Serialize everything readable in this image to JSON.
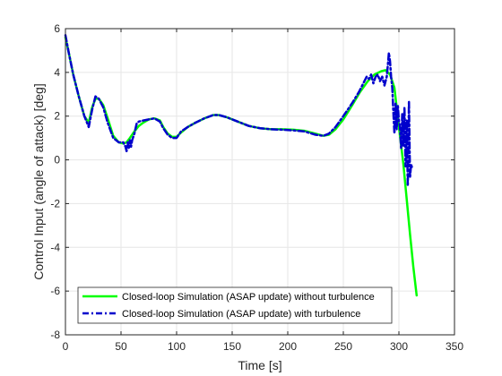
{
  "chart_data": {
    "type": "line",
    "title": "",
    "xlabel": "Time [s]",
    "ylabel": "Control Input (angle of attack) [deg]",
    "xlim": [
      0,
      350
    ],
    "ylim": [
      -8,
      6
    ],
    "xticks": [
      0,
      50,
      100,
      150,
      200,
      250,
      300,
      350
    ],
    "yticks": [
      -8,
      -6,
      -4,
      -2,
      0,
      2,
      4,
      6
    ],
    "grid": true,
    "legend_position": "bottom-left",
    "series": [
      {
        "name": "Closed-loop Simulation (ASAP update) without turbulence",
        "color": "#00ff00",
        "style": "solid",
        "x": [
          0,
          3,
          7,
          12,
          17,
          21,
          24,
          27,
          30,
          34,
          38,
          43,
          48,
          52,
          55,
          58,
          62,
          66,
          70,
          75,
          80,
          85,
          88,
          92,
          96,
          100,
          104,
          110,
          117,
          125,
          133,
          138,
          145,
          155,
          165,
          175,
          185,
          195,
          205,
          215,
          225,
          232,
          237,
          243,
          250,
          258,
          265,
          272,
          278,
          284,
          288,
          292,
          296,
          300,
          304,
          307,
          310,
          313,
          316
        ],
        "y": [
          5.6,
          4.9,
          3.9,
          2.9,
          2.0,
          1.7,
          2.4,
          2.8,
          2.8,
          2.5,
          1.9,
          1.1,
          0.8,
          0.75,
          0.8,
          1.0,
          1.3,
          1.55,
          1.7,
          1.85,
          1.9,
          1.8,
          1.5,
          1.2,
          1.05,
          1.05,
          1.25,
          1.5,
          1.7,
          1.9,
          2.05,
          2.05,
          1.95,
          1.75,
          1.55,
          1.45,
          1.4,
          1.4,
          1.38,
          1.33,
          1.2,
          1.1,
          1.15,
          1.4,
          1.85,
          2.5,
          3.1,
          3.6,
          3.9,
          4.05,
          4.1,
          3.9,
          3.3,
          1.5,
          -0.2,
          -1.8,
          -3.4,
          -4.9,
          -6.2
        ]
      },
      {
        "name": "Closed-loop Simulation (ASAP update) with turbulence",
        "color": "#0000cc",
        "style": "dashdot",
        "x": [
          0,
          3,
          7,
          12,
          17,
          21,
          24,
          27,
          30,
          34,
          38,
          43,
          48,
          52,
          54,
          55,
          56,
          57,
          58,
          59,
          60,
          62,
          64,
          66,
          70,
          75,
          80,
          85,
          88,
          92,
          96,
          100,
          104,
          110,
          117,
          125,
          133,
          138,
          145,
          155,
          165,
          175,
          185,
          195,
          205,
          215,
          225,
          232,
          237,
          243,
          250,
          258,
          264,
          268,
          271,
          273,
          275,
          277,
          279,
          281,
          283,
          285,
          287,
          289,
          290,
          291,
          292,
          293,
          294,
          295,
          296,
          297,
          298,
          299,
          300,
          301,
          302,
          303,
          304,
          305,
          306,
          307,
          308,
          309,
          310,
          311,
          312
        ],
        "y": [
          5.7,
          4.9,
          3.9,
          2.9,
          2.0,
          1.5,
          2.3,
          2.9,
          2.8,
          2.4,
          1.7,
          1.0,
          0.8,
          0.8,
          0.6,
          0.4,
          0.8,
          0.5,
          0.9,
          0.6,
          0.9,
          1.2,
          1.65,
          1.75,
          1.8,
          1.85,
          1.9,
          1.75,
          1.45,
          1.15,
          1.0,
          1.0,
          1.3,
          1.5,
          1.7,
          1.9,
          2.05,
          2.05,
          1.95,
          1.75,
          1.55,
          1.45,
          1.4,
          1.38,
          1.35,
          1.3,
          1.15,
          1.1,
          1.2,
          1.5,
          2.0,
          2.6,
          3.1,
          3.5,
          3.8,
          3.7,
          3.9,
          3.5,
          3.8,
          3.9,
          3.6,
          3.8,
          3.4,
          3.8,
          4.3,
          4.9,
          4.5,
          3.8,
          3.3,
          2.2,
          1.2,
          2.6,
          1.4,
          2.5,
          1.8,
          1.5,
          0.5,
          2.1,
          0.6,
          2.4,
          -0.3,
          1.8,
          -1.2,
          2.7,
          -0.8,
          -0.2,
          -0.4
        ]
      }
    ]
  }
}
